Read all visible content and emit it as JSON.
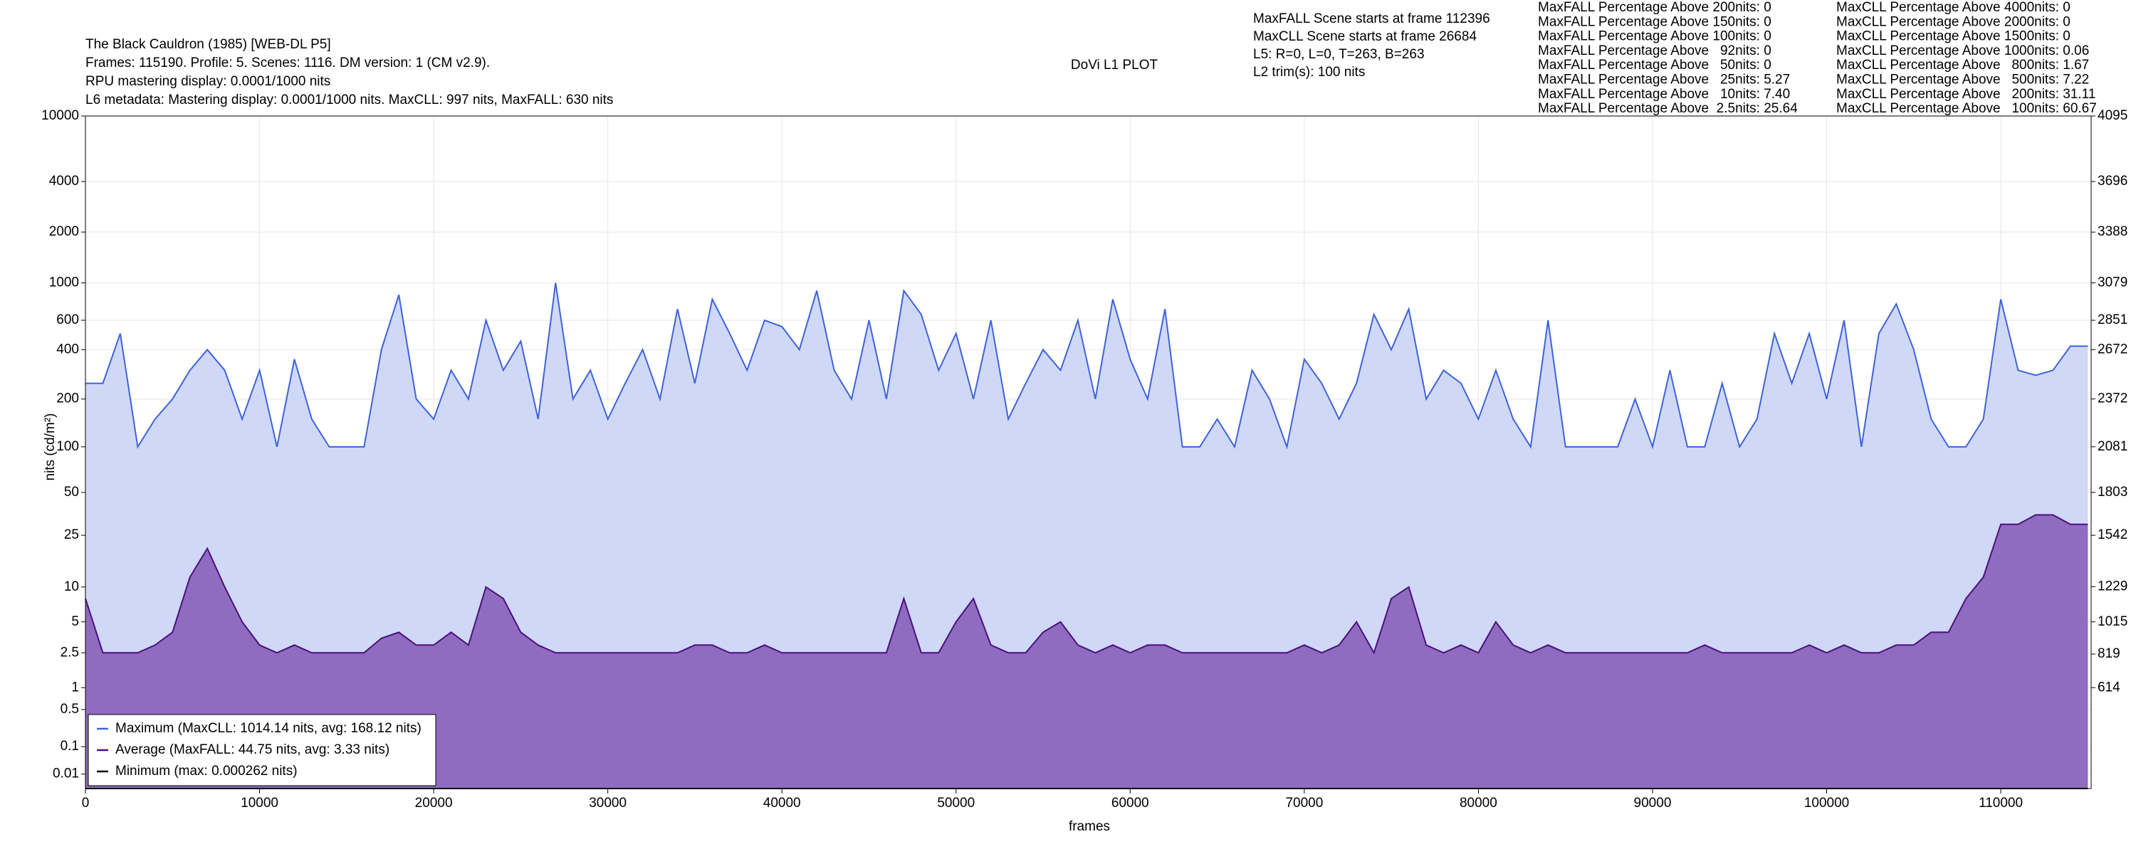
{
  "header": {
    "info_lines": [
      "The Black Cauldron (1985) [WEB-DL P5]",
      "Frames: 115190. Profile: 5. Scenes: 1116. DM version: 1 (CM v2.9).",
      "RPU mastering display: 0.0001/1000 nits",
      "L6 metadata: Mastering display: 0.0001/1000 nits. MaxCLL: 997 nits, MaxFALL: 630 nits"
    ],
    "scene_lines": [
      "MaxFALL Scene starts at frame 112396",
      "MaxCLL Scene starts at frame 26684",
      "L5: R=0, L=0, T=263, B=263",
      "L2 trim(s): 100 nits"
    ],
    "maxfall_stats": [
      "MaxFALL Percentage Above 200nits: 0",
      "MaxFALL Percentage Above 150nits: 0",
      "MaxFALL Percentage Above 100nits: 0",
      "MaxFALL Percentage Above   92nits: 0",
      "MaxFALL Percentage Above   50nits: 0",
      "MaxFALL Percentage Above   25nits: 5.27",
      "MaxFALL Percentage Above   10nits: 7.40",
      "MaxFALL Percentage Above  2.5nits: 25.64"
    ],
    "maxcll_stats": [
      "MaxCLL Percentage Above 4000nits: 0",
      "MaxCLL Percentage Above 2000nits: 0",
      "MaxCLL Percentage Above 1500nits: 0",
      "MaxCLL Percentage Above 1000nits: 0.06",
      "MaxCLL Percentage Above   800nits: 1.67",
      "MaxCLL Percentage Above   500nits: 7.22",
      "MaxCLL Percentage Above   200nits: 31.11",
      "MaxCLL Percentage Above   100nits: 60.67"
    ]
  },
  "chart_data": {
    "type": "line",
    "title": "DoVi L1 PLOT",
    "x_label": "frames",
    "y_label": "nits (cd/m²)",
    "yscale": "pq",
    "grid": true,
    "legend": "lower left",
    "xlim": [
      0,
      115190
    ],
    "xticks": [
      0,
      10000,
      20000,
      30000,
      40000,
      50000,
      60000,
      70000,
      80000,
      90000,
      100000,
      110000
    ],
    "ylim": [
      0,
      10000
    ],
    "yticks": [
      0.01,
      0.1,
      0.5,
      1,
      2.5,
      5,
      10,
      25,
      50,
      100,
      200,
      400,
      600,
      1000,
      2000,
      4000,
      10000
    ],
    "y2lim": [
      0,
      4095
    ],
    "y2ticks": [
      614,
      819,
      1015,
      1229,
      1542,
      1803,
      2081,
      2372,
      2672,
      2851,
      3079,
      3388,
      3696,
      4095
    ],
    "x": [
      0,
      1000,
      2000,
      3000,
      4000,
      5000,
      6000,
      7000,
      8000,
      9000,
      10000,
      11000,
      12000,
      13000,
      14000,
      15000,
      16000,
      17000,
      18000,
      19000,
      20000,
      21000,
      22000,
      23000,
      24000,
      25000,
      26000,
      27000,
      28000,
      29000,
      30000,
      31000,
      32000,
      33000,
      34000,
      35000,
      36000,
      37000,
      38000,
      39000,
      40000,
      41000,
      42000,
      43000,
      44000,
      45000,
      46000,
      47000,
      48000,
      49000,
      50000,
      51000,
      52000,
      53000,
      54000,
      55000,
      56000,
      57000,
      58000,
      59000,
      60000,
      61000,
      62000,
      63000,
      64000,
      65000,
      66000,
      67000,
      68000,
      69000,
      70000,
      71000,
      72000,
      73000,
      74000,
      75000,
      76000,
      77000,
      78000,
      79000,
      80000,
      81000,
      82000,
      83000,
      84000,
      85000,
      86000,
      87000,
      88000,
      89000,
      90000,
      91000,
      92000,
      93000,
      94000,
      95000,
      96000,
      97000,
      98000,
      99000,
      100000,
      101000,
      102000,
      103000,
      104000,
      105000,
      106000,
      107000,
      108000,
      109000,
      110000,
      111000,
      112000,
      113000,
      114000,
      115000
    ],
    "series": [
      {
        "name": "Maximum (MaxCLL: 1014.14 nits, avg: 168.12 nits)",
        "color": "#3f63d8",
        "fill": "#cfd8f7",
        "values": [
          250,
          250,
          500,
          100,
          150,
          200,
          300,
          400,
          300,
          150,
          300,
          100,
          350,
          150,
          100,
          100,
          100,
          400,
          850,
          200,
          150,
          300,
          200,
          600,
          300,
          450,
          150,
          1000,
          200,
          300,
          150,
          250,
          400,
          200,
          700,
          250,
          800,
          500,
          300,
          600,
          550,
          400,
          900,
          300,
          200,
          600,
          200,
          900,
          650,
          300,
          500,
          200,
          600,
          150,
          250,
          400,
          300,
          600,
          200,
          800,
          350,
          200,
          700,
          100,
          100,
          150,
          100,
          300,
          200,
          100,
          350,
          250,
          150,
          250,
          650,
          400,
          700,
          200,
          300,
          250,
          150,
          300,
          150,
          100,
          600,
          100,
          100,
          100,
          100,
          200,
          100,
          300,
          100,
          100,
          250,
          100,
          150,
          500,
          250,
          500,
          200,
          600,
          100,
          500,
          750,
          400,
          150,
          100,
          100,
          150,
          800,
          300,
          280,
          300,
          420,
          420
        ]
      },
      {
        "name": "Average (MaxFALL: 44.75 nits, avg: 3.33 nits)",
        "color": "#4b0f80",
        "fill": "#8f6cbf",
        "values": [
          8,
          2.5,
          2.5,
          2.5,
          3,
          4,
          12,
          20,
          10,
          5,
          3,
          2.5,
          3,
          2.5,
          2.5,
          2.5,
          2.5,
          3.5,
          4,
          3,
          3,
          4,
          3,
          10,
          8,
          4,
          3,
          2.5,
          2.5,
          2.5,
          2.5,
          2.5,
          2.5,
          2.5,
          2.5,
          3,
          3,
          2.5,
          2.5,
          3,
          2.5,
          2.5,
          2.5,
          2.5,
          2.5,
          2.5,
          2.5,
          8,
          2.5,
          2.5,
          5,
          8,
          3,
          2.5,
          2.5,
          4,
          5,
          3,
          2.5,
          3,
          2.5,
          3,
          3,
          2.5,
          2.5,
          2.5,
          2.5,
          2.5,
          2.5,
          2.5,
          3,
          2.5,
          3,
          5,
          2.5,
          8,
          10,
          3,
          2.5,
          3,
          2.5,
          5,
          3,
          2.5,
          3,
          2.5,
          2.5,
          2.5,
          2.5,
          2.5,
          2.5,
          2.5,
          2.5,
          3,
          2.5,
          2.5,
          2.5,
          2.5,
          2.5,
          3,
          2.5,
          3,
          2.5,
          2.5,
          3,
          3,
          4,
          4,
          8,
          12,
          30,
          30,
          35,
          35,
          30,
          30
        ]
      },
      {
        "name": "Minimum (max: 0.000262 nits)",
        "color": "#000000",
        "values": [
          0,
          0,
          0,
          0,
          0,
          0,
          0,
          0,
          0,
          0,
          0,
          0,
          0,
          0,
          0,
          0,
          0,
          0,
          0,
          0,
          0,
          0,
          0,
          0,
          0,
          0,
          0,
          0,
          0,
          0,
          0,
          0,
          0,
          0,
          0,
          0,
          0,
          0,
          0,
          0,
          0,
          0,
          0,
          0,
          0,
          0,
          0,
          0,
          0,
          0,
          0,
          0,
          0,
          0,
          0,
          0,
          0,
          0,
          0,
          0,
          0,
          0,
          0,
          0,
          0,
          0,
          0,
          0,
          0,
          0,
          0,
          0,
          0,
          0,
          0,
          0,
          0,
          0,
          0,
          0,
          0,
          0,
          0,
          0,
          0,
          0,
          0,
          0,
          0,
          0,
          0,
          0,
          0,
          0,
          0,
          0,
          0,
          0,
          0,
          0,
          0,
          0,
          0,
          0,
          0,
          0,
          0,
          0,
          0,
          0,
          0,
          0,
          0,
          0,
          0,
          0
        ]
      }
    ]
  }
}
